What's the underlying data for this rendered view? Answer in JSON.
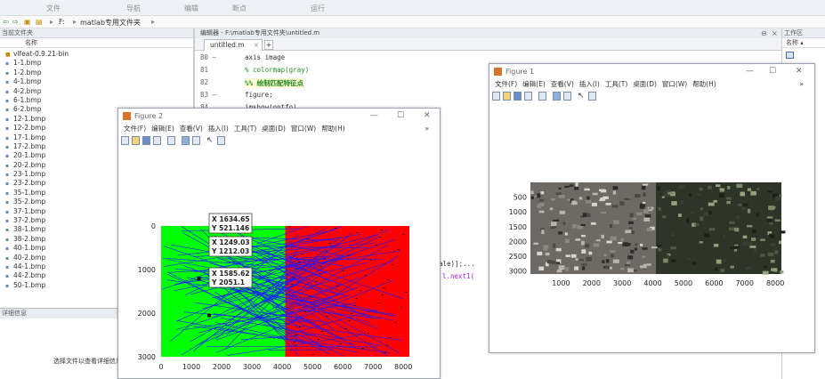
{
  "ribbon": {
    "tabs": [
      "文件",
      "导航",
      "编辑",
      "断点",
      "运行"
    ]
  },
  "path": {
    "crumbs": [
      "F:",
      "matlab专用文件夹"
    ]
  },
  "folder": {
    "title": "当前文件夹",
    "col_name": "名称",
    "dir_name": "vlfeat-0.9.21-bin",
    "files": [
      "1-1.bmp",
      "1-2.bmp",
      "4-1.bmp",
      "4-2.bmp",
      "6-1.bmp",
      "6-2.bmp",
      "12-1.bmp",
      "12-2.bmp",
      "17-1.bmp",
      "17-2.bmp",
      "20-1.bmp",
      "20-2.bmp",
      "23-1.bmp",
      "23-2.bmp",
      "35-1.bmp",
      "35-2.bmp",
      "37-1.bmp",
      "37-2.bmp",
      "38-1.bmp",
      "38-2.bmp",
      "40-1.bmp",
      "40-2.bmp",
      "44-1.bmp",
      "44-2.bmp",
      "50-1.bmp"
    ],
    "details_title": "详细信息",
    "hint": "选择文件以查看详细信息"
  },
  "editor": {
    "title": "编辑器 - F:\\matlab专用文件夹\\untitled.m",
    "tab": "untitled.m",
    "plus": "+",
    "lines": [
      {
        "num": "80 —",
        "code": "axis image"
      },
      {
        "num": "81",
        "code": "% colormap(gray)"
      },
      {
        "num": "82",
        "code": "%% 绘制匹配特征点"
      },
      {
        "num": "83 —",
        "code": "figure;"
      },
      {
        "num": "84",
        "code": "imshow(ontfo)"
      }
    ],
    "frag1": "ale)];...",
    "frag2": "l.next1(",
    "minimize": "⊖",
    "close": "×"
  },
  "right": {
    "title": "工作区",
    "col": "名称 ▴"
  },
  "fig2": {
    "title": "Figure 2",
    "menus": [
      "文件(F)",
      "编辑(E)",
      "查看(V)",
      "插入(I)",
      "工具(T)",
      "桌面(D)",
      "窗口(W)",
      "帮助(H)"
    ],
    "ctl": {
      "min": "—",
      "max": "☐",
      "close": "✕"
    },
    "arrow": "»",
    "xticks": [
      "0",
      "1000",
      "2000",
      "3000",
      "4000",
      "5000",
      "6000",
      "7000",
      "8000"
    ],
    "yticks": [
      "0",
      "1000",
      "2000",
      "3000"
    ],
    "tips": [
      {
        "x": "X 1634.65",
        "y": "Y 521.146"
      },
      {
        "x": "X 1249.03",
        "y": "Y 1212.03"
      },
      {
        "x": "X 1585.62",
        "y": "Y 2051.1"
      }
    ]
  },
  "fig1": {
    "title": "Figure 1",
    "menus": [
      "文件(F)",
      "编辑(E)",
      "查看(V)",
      "插入(I)",
      "工具(T)",
      "桌面(D)",
      "窗口(W)",
      "帮助(H)"
    ],
    "ctl": {
      "min": "—",
      "max": "☐",
      "close": "✕"
    },
    "arrow": "»",
    "xticks": [
      "1000",
      "2000",
      "3000",
      "4000",
      "5000",
      "6000",
      "7000",
      "8000"
    ],
    "yticks": [
      "500",
      "1000",
      "1500",
      "2000",
      "2500",
      "3000"
    ]
  },
  "colors": {
    "green": "#00ff00",
    "red": "#ff0000",
    "blue": "#1a1aff"
  }
}
